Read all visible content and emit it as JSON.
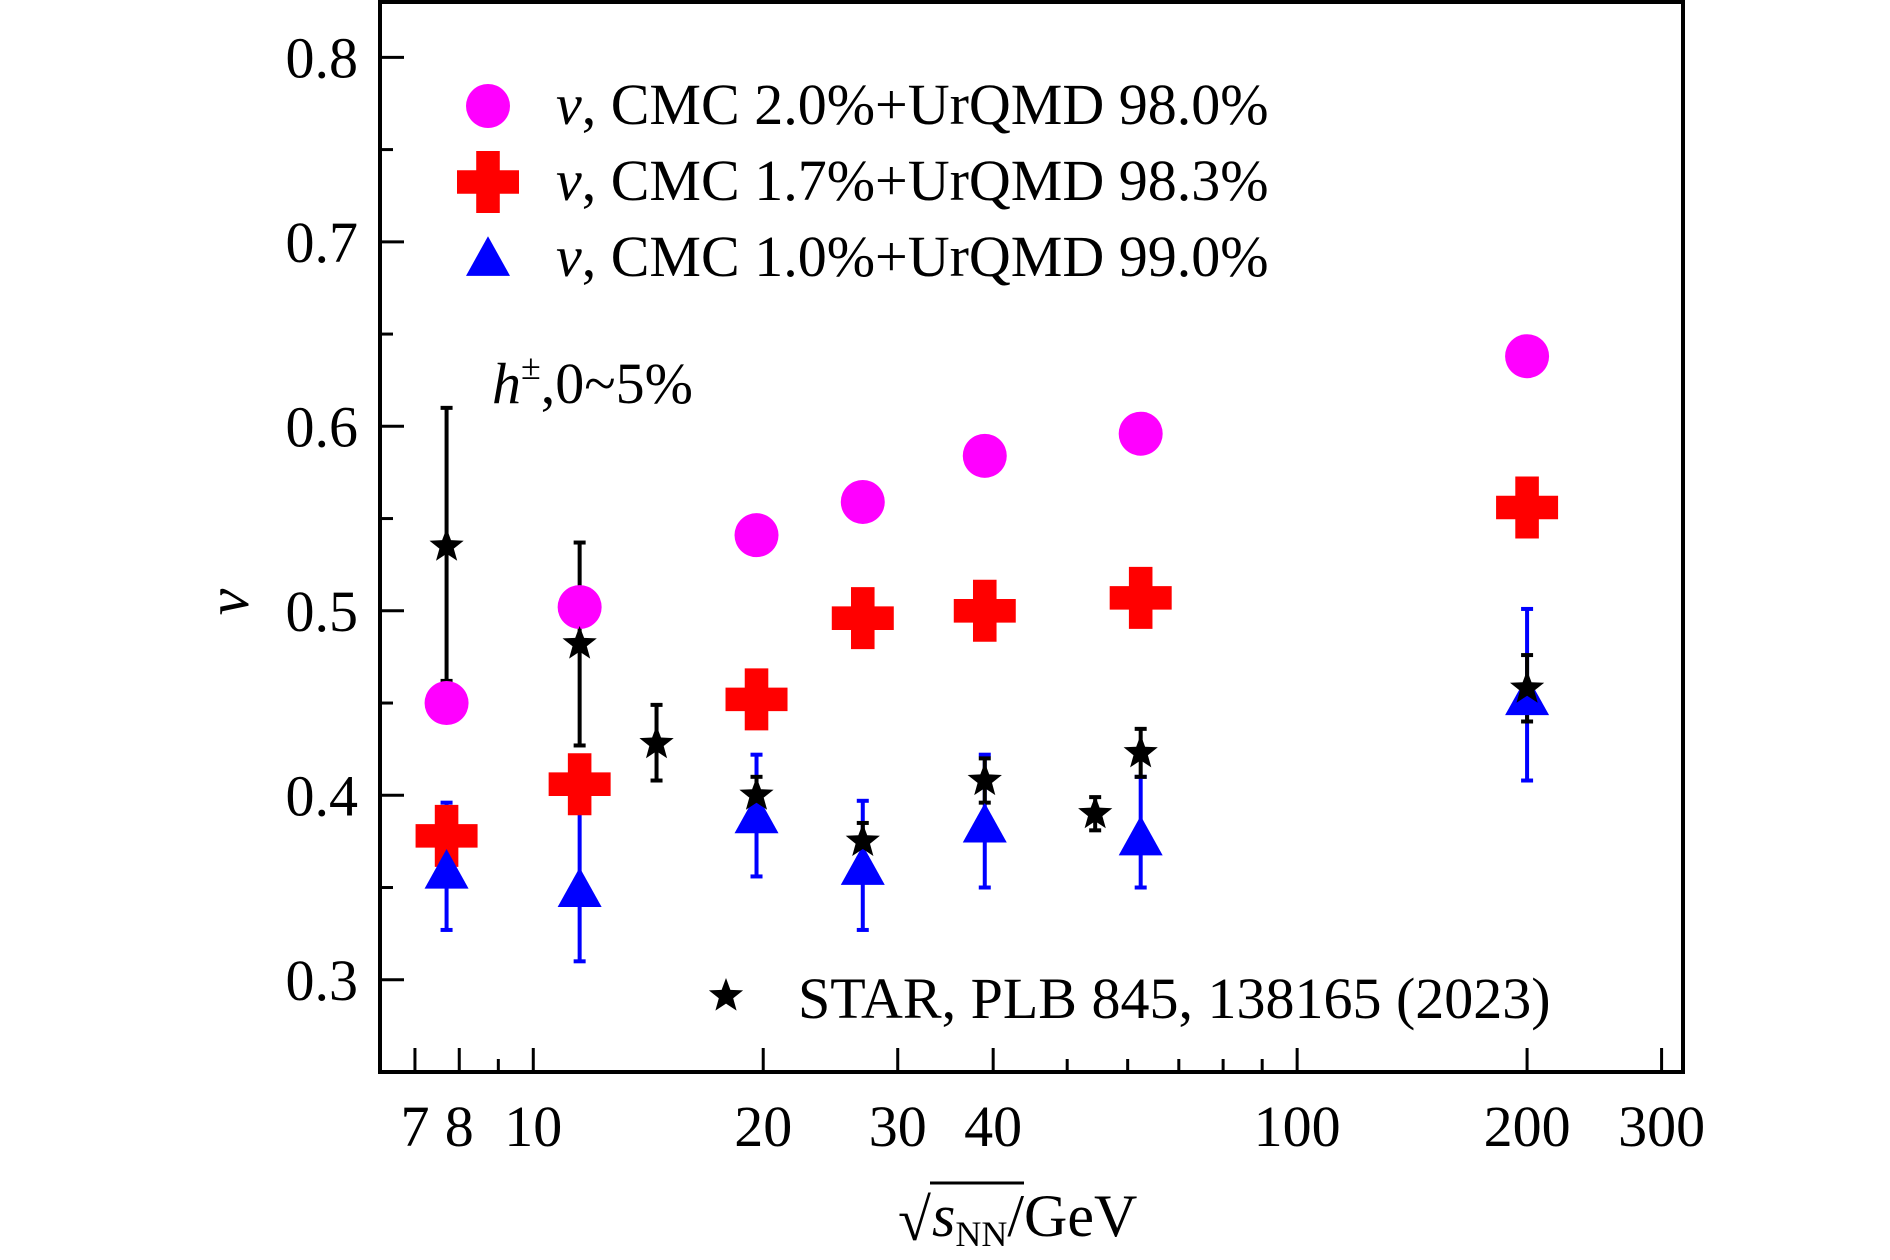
{
  "chart_data": {
    "type": "scatter",
    "x_scale": "log",
    "xlim": [
      6.3,
      320
    ],
    "ylim": [
      0.25,
      0.83
    ],
    "xticks": [
      7,
      8,
      10,
      20,
      30,
      40,
      100,
      200,
      300
    ],
    "xtick_labels": [
      "7",
      "8",
      "10",
      "20",
      "30",
      "40",
      "100",
      "200",
      "300"
    ],
    "yticks": [
      0.3,
      0.4,
      0.5,
      0.6,
      0.7,
      0.8
    ],
    "ytick_labels": [
      "0.3",
      "0.4",
      "0.5",
      "0.6",
      "0.7",
      "0.8"
    ],
    "xlabel": {
      "root": "√",
      "s": "s",
      "sub": "NN",
      "unit": "/GeV"
    },
    "ylabel": "v",
    "annotation": {
      "h": "h",
      "sup": "±",
      "rest": ",0~5%"
    },
    "grid": false,
    "legend_position": "top-left",
    "series": [
      {
        "name_var": "v",
        "name_text": ", CMC 2.0%+UrQMD 98.0%",
        "marker": "circle",
        "color": "#ff00ff",
        "x": [
          7.7,
          11.5,
          19.6,
          27,
          39,
          62.4,
          200
        ],
        "y": [
          0.45,
          0.502,
          0.541,
          0.559,
          0.584,
          0.596,
          0.638
        ]
      },
      {
        "name_var": "v",
        "name_text": ", CMC 1.7%+UrQMD 98.3%",
        "marker": "cross",
        "color": "#ff0000",
        "x": [
          7.7,
          11.5,
          19.6,
          27,
          39,
          62.4,
          200
        ],
        "y": [
          0.378,
          0.406,
          0.452,
          0.496,
          0.5,
          0.507,
          0.556
        ]
      },
      {
        "name_var": "v",
        "name_text": ", CMC 1.0%+UrQMD 99.0%",
        "marker": "triangle",
        "color": "#0000ff",
        "x": [
          7.7,
          11.5,
          19.6,
          27,
          39,
          62.4,
          200
        ],
        "y": [
          0.358,
          0.348,
          0.388,
          0.36,
          0.383,
          0.376,
          0.452
        ],
        "err_low": [
          0.327,
          0.31,
          0.356,
          0.327,
          0.35,
          0.35,
          0.408
        ],
        "err_high": [
          0.396,
          0.395,
          0.422,
          0.397,
          0.422,
          0.41,
          0.501
        ]
      },
      {
        "name": "STAR, PLB 845, 138165 (2023)",
        "marker": "star",
        "color": "#000000",
        "x": [
          7.7,
          11.5,
          14.5,
          19.6,
          27,
          39,
          54.4,
          62.4,
          200
        ],
        "y": [
          0.535,
          0.482,
          0.428,
          0.4,
          0.375,
          0.408,
          0.39,
          0.423,
          0.458
        ],
        "err_low": [
          0.462,
          0.427,
          0.408,
          0.39,
          0.366,
          0.396,
          0.381,
          0.41,
          0.44
        ],
        "err_high": [
          0.61,
          0.537,
          0.449,
          0.41,
          0.385,
          0.42,
          0.399,
          0.436,
          0.476
        ]
      }
    ]
  }
}
